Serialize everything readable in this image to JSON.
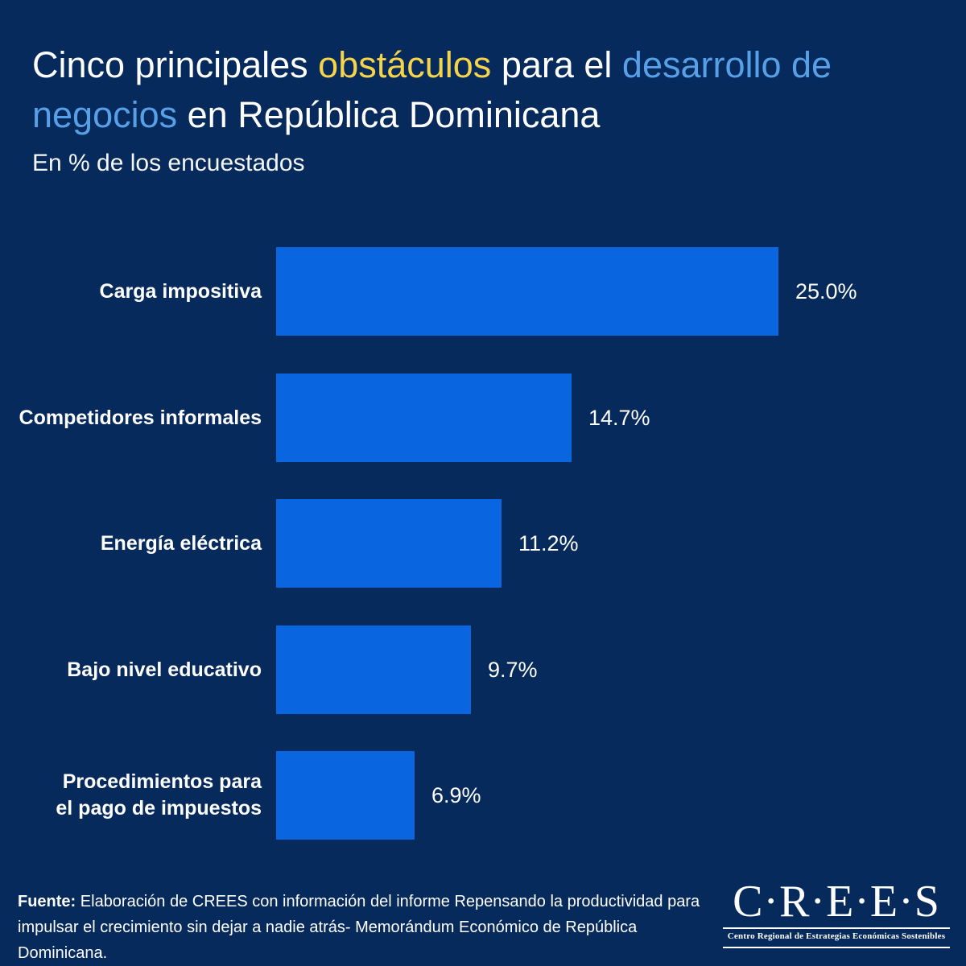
{
  "title": {
    "segments": [
      {
        "text": "Cinco principales ",
        "color": "white"
      },
      {
        "text": "obstáculos",
        "color": "yellow"
      },
      {
        "text": " para el ",
        "color": "white"
      },
      {
        "text": "desarrollo de negocios",
        "color": "lightblue"
      },
      {
        "text": " en República Dominicana",
        "color": "white"
      }
    ],
    "colors": {
      "white": "#FFFFFF",
      "yellow": "#F5D44B",
      "lightblue": "#57A0E8"
    }
  },
  "subtitle": "En % de los encuestados",
  "chart_data": {
    "type": "bar",
    "orientation": "horizontal",
    "title": "Cinco principales obstáculos para el desarrollo de negocios en República Dominicana",
    "subtitle": "En % de los encuestados",
    "categories": [
      "Carga impositiva",
      "Competidores informales",
      "Energía eléctrica",
      "Bajo nivel educativo",
      "Procedimientos para\nel pago de impuestos"
    ],
    "values": [
      25.0,
      14.7,
      11.2,
      9.7,
      6.9
    ],
    "value_labels": [
      "25.0%",
      "14.7%",
      "11.2%",
      "9.7%",
      "6.9%"
    ],
    "xlim": [
      0,
      25.0
    ],
    "grid": false,
    "legend": false,
    "bar_color": "#0A66E0"
  },
  "footer": {
    "prefix": "Fuente:",
    "text": "Elaboración de CREES con información del informe Repensando la productividad para impulsar el crecimiento sin dejar a nadie atrás- Memorándum Económico de República Dominicana."
  },
  "logo": {
    "name": "C·R·E·E·S",
    "subtitle": "Centro Regional de Estrategias Económicas Sostenibles"
  },
  "colors": {
    "background": "#062A5C",
    "bar": "#0A66E0",
    "text": "#FFFFFF"
  }
}
